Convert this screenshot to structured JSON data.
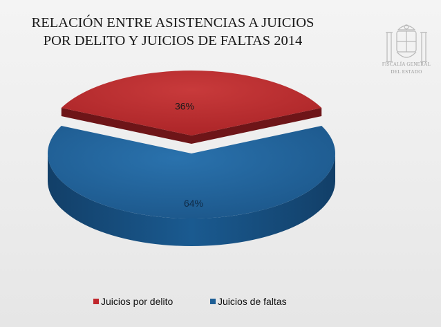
{
  "title": {
    "line1": "RELACIÓN ENTRE ASISTENCIAS A JUICIOS",
    "line2": "POR DELITO Y JUICIOS DE FALTAS 2014"
  },
  "logo": {
    "line1": "FISCALÍA GENERAL",
    "line2": "DEL ESTADO"
  },
  "chart_data": {
    "type": "pie",
    "categories": [
      "Juicios por delito",
      "Juicios de faltas"
    ],
    "values": [
      36,
      64
    ],
    "labels": [
      "36%",
      "64%"
    ],
    "colors": [
      "#c0272d",
      "#1f5f95"
    ],
    "legend_position": "bottom",
    "exploded": "Juicios por delito",
    "style": "3d"
  }
}
